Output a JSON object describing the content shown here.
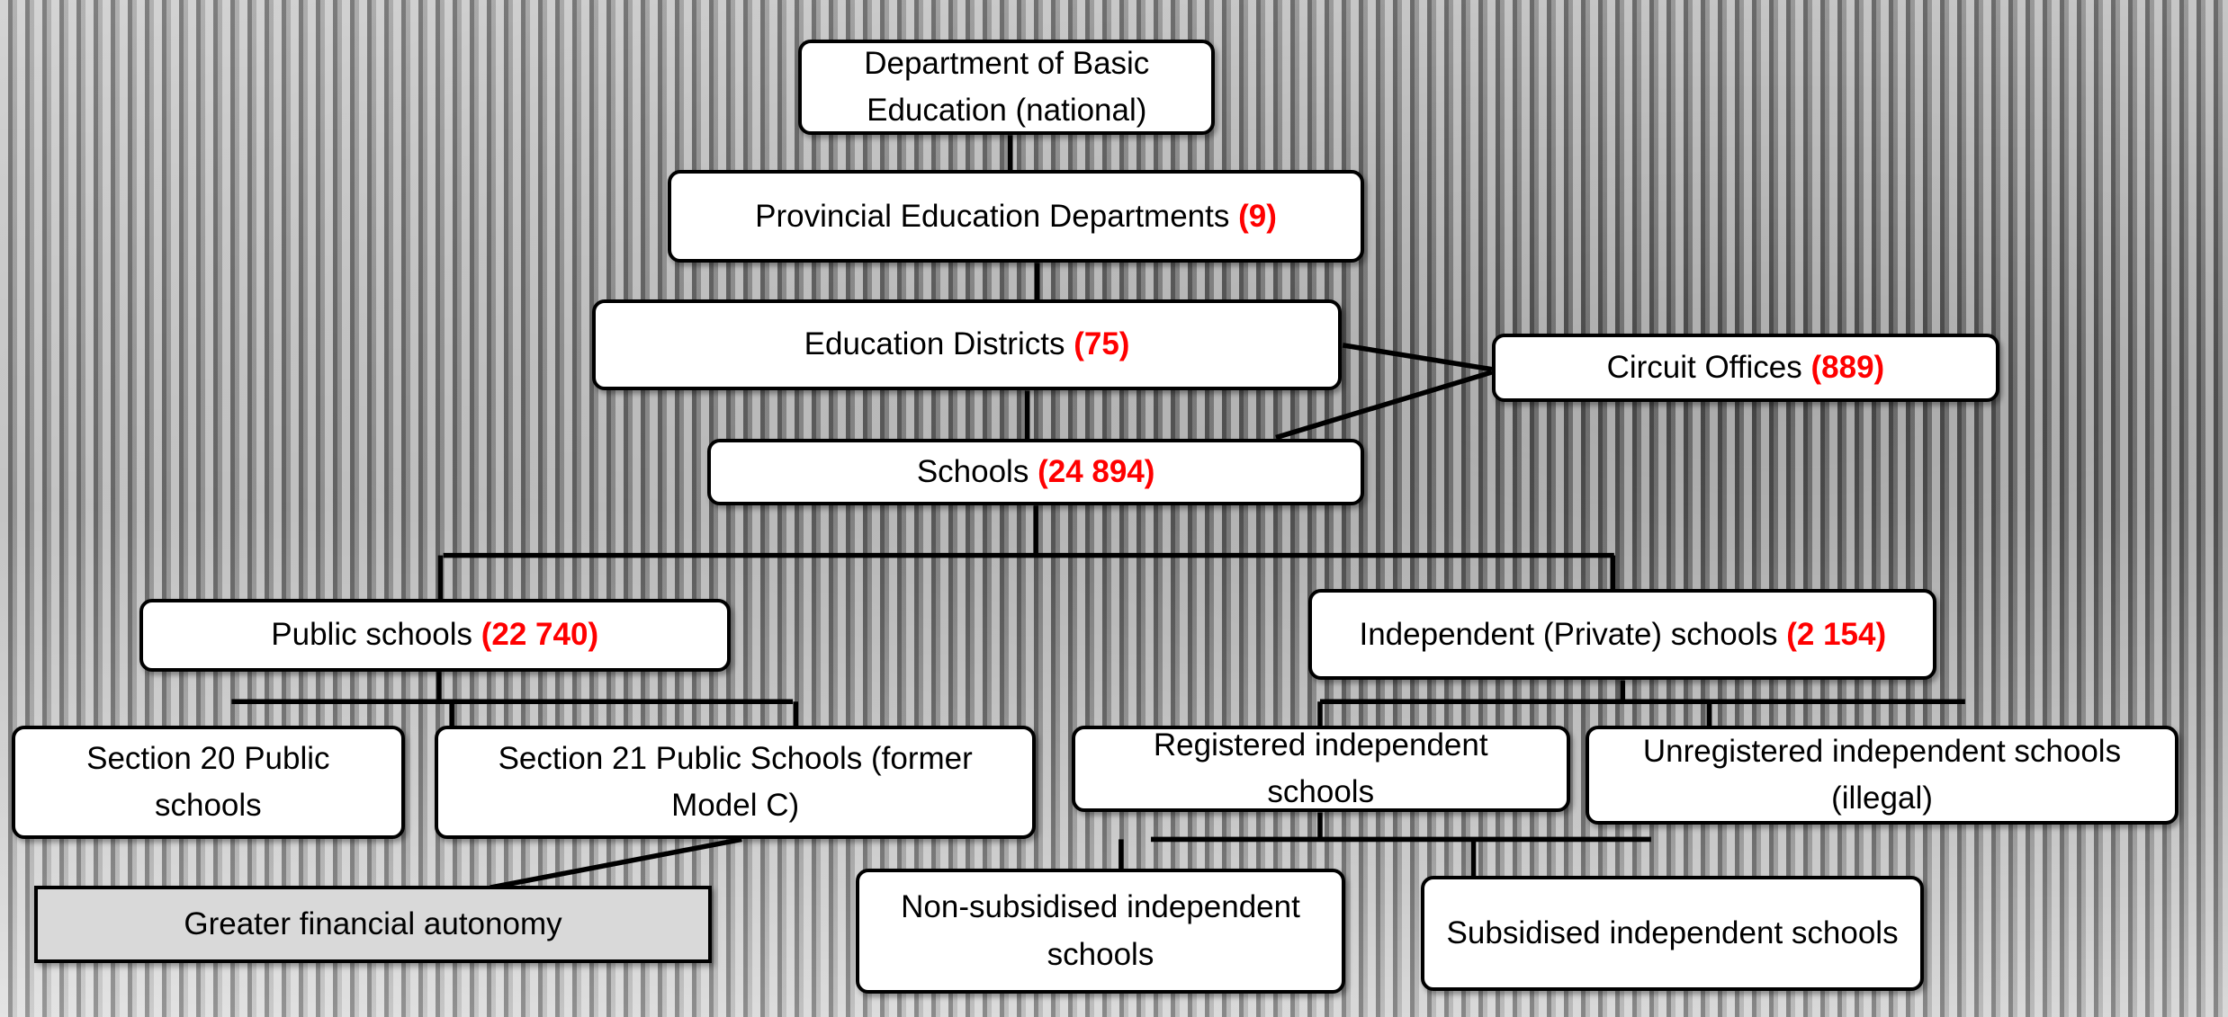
{
  "nodes": [
    {
      "label": "Department of Basic Education (national)"
    },
    {
      "label": "Provincial Education Departments",
      "count": "(9)"
    },
    {
      "label": "Education Districts",
      "count": "(75)"
    },
    {
      "label": "Circuit Offices",
      "count": "(889)"
    },
    {
      "label": "Schools",
      "count": "(24 894)"
    },
    {
      "label": "Public schools",
      "count": "(22 740)"
    },
    {
      "label": "Independent (Private) schools",
      "count": "(2 154)"
    },
    {
      "label": "Section 20 Public schools"
    },
    {
      "label": "Section 21 Public Schools (former Model C)"
    },
    {
      "label": "Registered independent schools"
    },
    {
      "label": "Unregistered independent schools (illegal)"
    },
    {
      "label": "Greater financial autonomy"
    },
    {
      "label": "Non-subsidised independent schools"
    },
    {
      "label": "Subsidised independent schools"
    }
  ]
}
